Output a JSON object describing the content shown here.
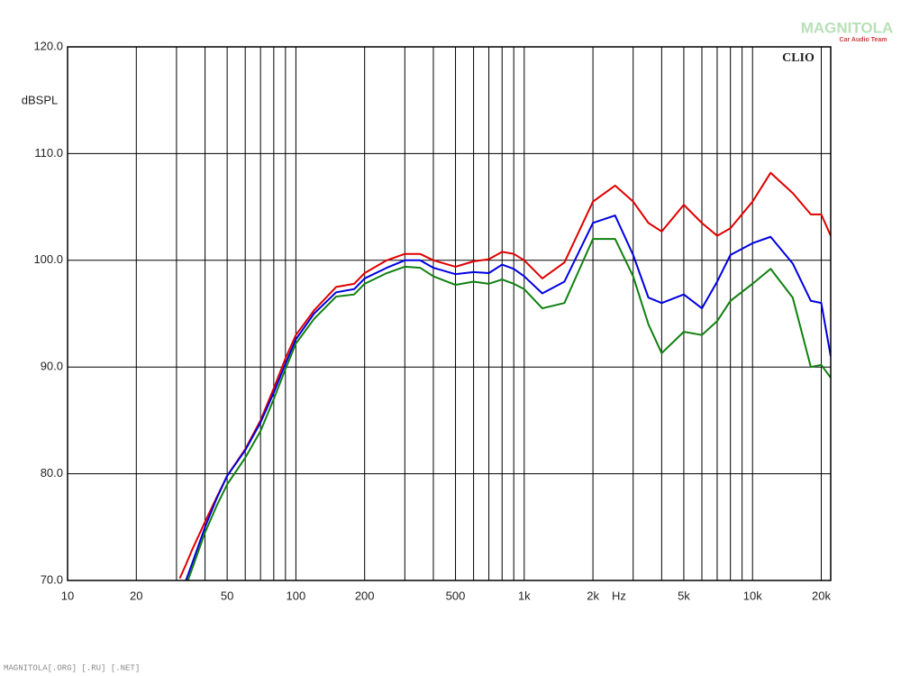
{
  "chart_data": {
    "type": "line",
    "y_label": "dBSPL",
    "x_unit_label": "Hz",
    "brand": "CLIO",
    "watermark": "MAGNITOLA",
    "watermark_subtitle": "Car Audio Team",
    "footer": "MAGNITOLA[.ORG] [.RU] [.NET]",
    "log_x": true,
    "grid": true,
    "xlim": [
      10,
      22000
    ],
    "ylim": [
      70,
      120
    ],
    "yticks": [
      {
        "value": 70,
        "label": "70.0"
      },
      {
        "value": 80,
        "label": "80.0"
      },
      {
        "value": 90,
        "label": "90.0"
      },
      {
        "value": 100,
        "label": "100.0"
      },
      {
        "value": 110,
        "label": "110.0"
      },
      {
        "value": 120,
        "label": "120.0"
      }
    ],
    "xticks": [
      10,
      20,
      {
        "value": 30,
        "label": null
      },
      {
        "value": 40,
        "label": null
      },
      50,
      {
        "value": 60,
        "label": null
      },
      {
        "value": 70,
        "label": null
      },
      {
        "value": 80,
        "label": null
      },
      {
        "value": 90,
        "label": null
      },
      100,
      200,
      {
        "value": 300,
        "label": null
      },
      {
        "value": 400,
        "label": null
      },
      500,
      {
        "value": 600,
        "label": null
      },
      {
        "value": 700,
        "label": null
      },
      {
        "value": 800,
        "label": null
      },
      {
        "value": 900,
        "label": null
      },
      {
        "value": 1000,
        "label": "1k"
      },
      {
        "value": 2000,
        "label": "2k"
      },
      {
        "value": 3000,
        "label": null
      },
      {
        "value": 4000,
        "label": null
      },
      {
        "value": 5000,
        "label": "5k"
      },
      {
        "value": 6000,
        "label": null
      },
      {
        "value": 7000,
        "label": null
      },
      {
        "value": 8000,
        "label": null
      },
      {
        "value": 9000,
        "label": null
      },
      {
        "value": 10000,
        "label": "10k"
      },
      {
        "value": 20000,
        "label": "20k"
      }
    ],
    "x": [
      31,
      33,
      35,
      40,
      45,
      50,
      60,
      70,
      80,
      90,
      100,
      120,
      150,
      180,
      200,
      250,
      300,
      350,
      400,
      500,
      600,
      700,
      800,
      900,
      1000,
      1200,
      1500,
      2000,
      2500,
      3000,
      3500,
      4000,
      5000,
      6000,
      7000,
      8000,
      10000,
      12000,
      15000,
      18000,
      20000,
      22000
    ],
    "series": [
      {
        "color": "#e00000",
        "values": [
          70.2,
          71.5,
          72.8,
          75.5,
          77.8,
          79.8,
          82.3,
          85.0,
          88.0,
          90.8,
          93.0,
          95.3,
          97.5,
          97.8,
          98.8,
          100.0,
          100.6,
          100.6,
          100.0,
          99.4,
          99.9,
          100.1,
          100.8,
          100.6,
          100.0,
          98.3,
          99.8,
          105.5,
          107.0,
          105.5,
          103.5,
          102.7,
          105.2,
          103.5,
          102.3,
          103.0,
          105.5,
          108.2,
          106.3,
          104.3,
          104.3,
          102.3
        ]
      },
      {
        "color": "#0000e0",
        "values": [
          null,
          70.0,
          71.5,
          75.0,
          77.7,
          79.8,
          82.2,
          84.8,
          87.6,
          90.3,
          92.6,
          95.0,
          97.0,
          97.3,
          98.3,
          99.3,
          100.0,
          100.0,
          99.3,
          98.7,
          98.9,
          98.8,
          99.6,
          99.2,
          98.5,
          96.9,
          98.0,
          103.5,
          104.2,
          100.5,
          96.5,
          96.0,
          96.8,
          95.5,
          98.0,
          100.5,
          101.6,
          102.2,
          99.7,
          96.2,
          96.0,
          91.0
        ]
      },
      {
        "color": "#108010",
        "values": [
          null,
          69.5,
          71.0,
          74.5,
          77.0,
          79.0,
          81.5,
          84.0,
          87.0,
          89.8,
          92.2,
          94.5,
          96.6,
          96.8,
          97.8,
          98.8,
          99.4,
          99.3,
          98.5,
          97.7,
          98.0,
          97.8,
          98.2,
          97.8,
          97.3,
          95.5,
          96.0,
          102.0,
          102.0,
          98.5,
          94.0,
          91.3,
          93.3,
          93.0,
          94.3,
          96.2,
          97.8,
          99.2,
          96.5,
          90.0,
          90.2,
          89.0
        ]
      }
    ]
  }
}
